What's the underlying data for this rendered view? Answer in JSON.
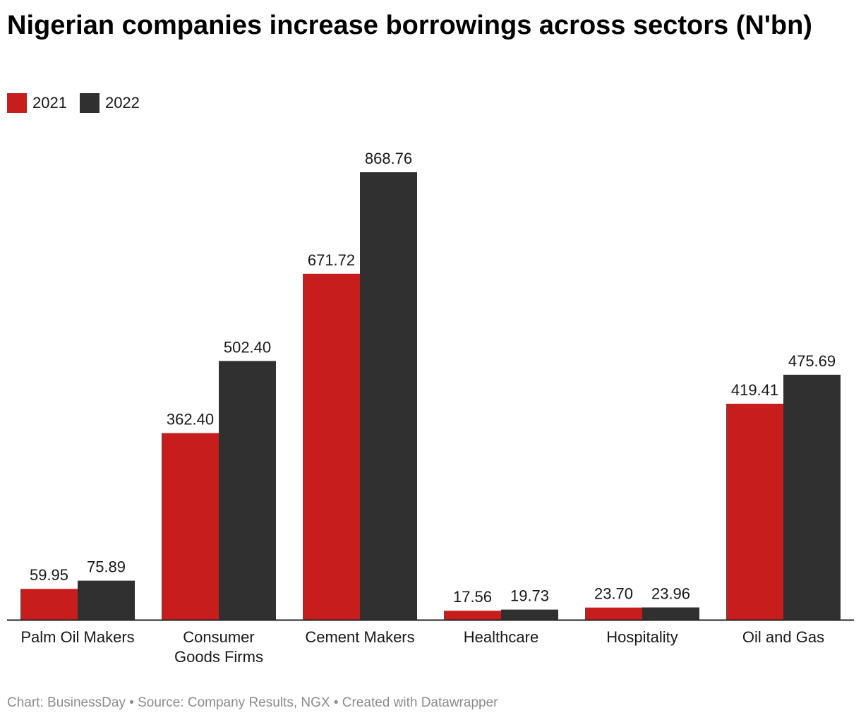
{
  "chart_data": {
    "type": "bar",
    "title": "Nigerian companies increase borrowings across sectors (N'bn)",
    "categories": [
      "Palm Oil Makers",
      "Consumer Goods Firms",
      "Cement Makers",
      "Healthcare",
      "Hospitality",
      "Oil and Gas"
    ],
    "category_lines": [
      [
        "Palm Oil Makers"
      ],
      [
        "Consumer",
        "Goods Firms"
      ],
      [
        "Cement Makers"
      ],
      [
        "Healthcare"
      ],
      [
        "Hospitality"
      ],
      [
        "Oil and Gas"
      ]
    ],
    "series": [
      {
        "name": "2021",
        "color": "#c71e1d",
        "values": [
          59.95,
          362.4,
          671.72,
          17.56,
          23.7,
          419.41
        ],
        "labels": [
          "59.95",
          "362.40",
          "671.72",
          "17.56",
          "23.70",
          "419.41"
        ]
      },
      {
        "name": "2022",
        "color": "#303030",
        "values": [
          75.89,
          502.4,
          868.76,
          19.73,
          23.96,
          475.69
        ],
        "labels": [
          "75.89",
          "502.40",
          "868.76",
          "19.73",
          "23.96",
          "475.69"
        ]
      }
    ],
    "ylim": [
      0,
      868.76
    ],
    "legend": "top-left",
    "grid": false
  },
  "footer": "Chart: BusinessDay • Source: Company Results, NGX • Created with Datawrapper"
}
